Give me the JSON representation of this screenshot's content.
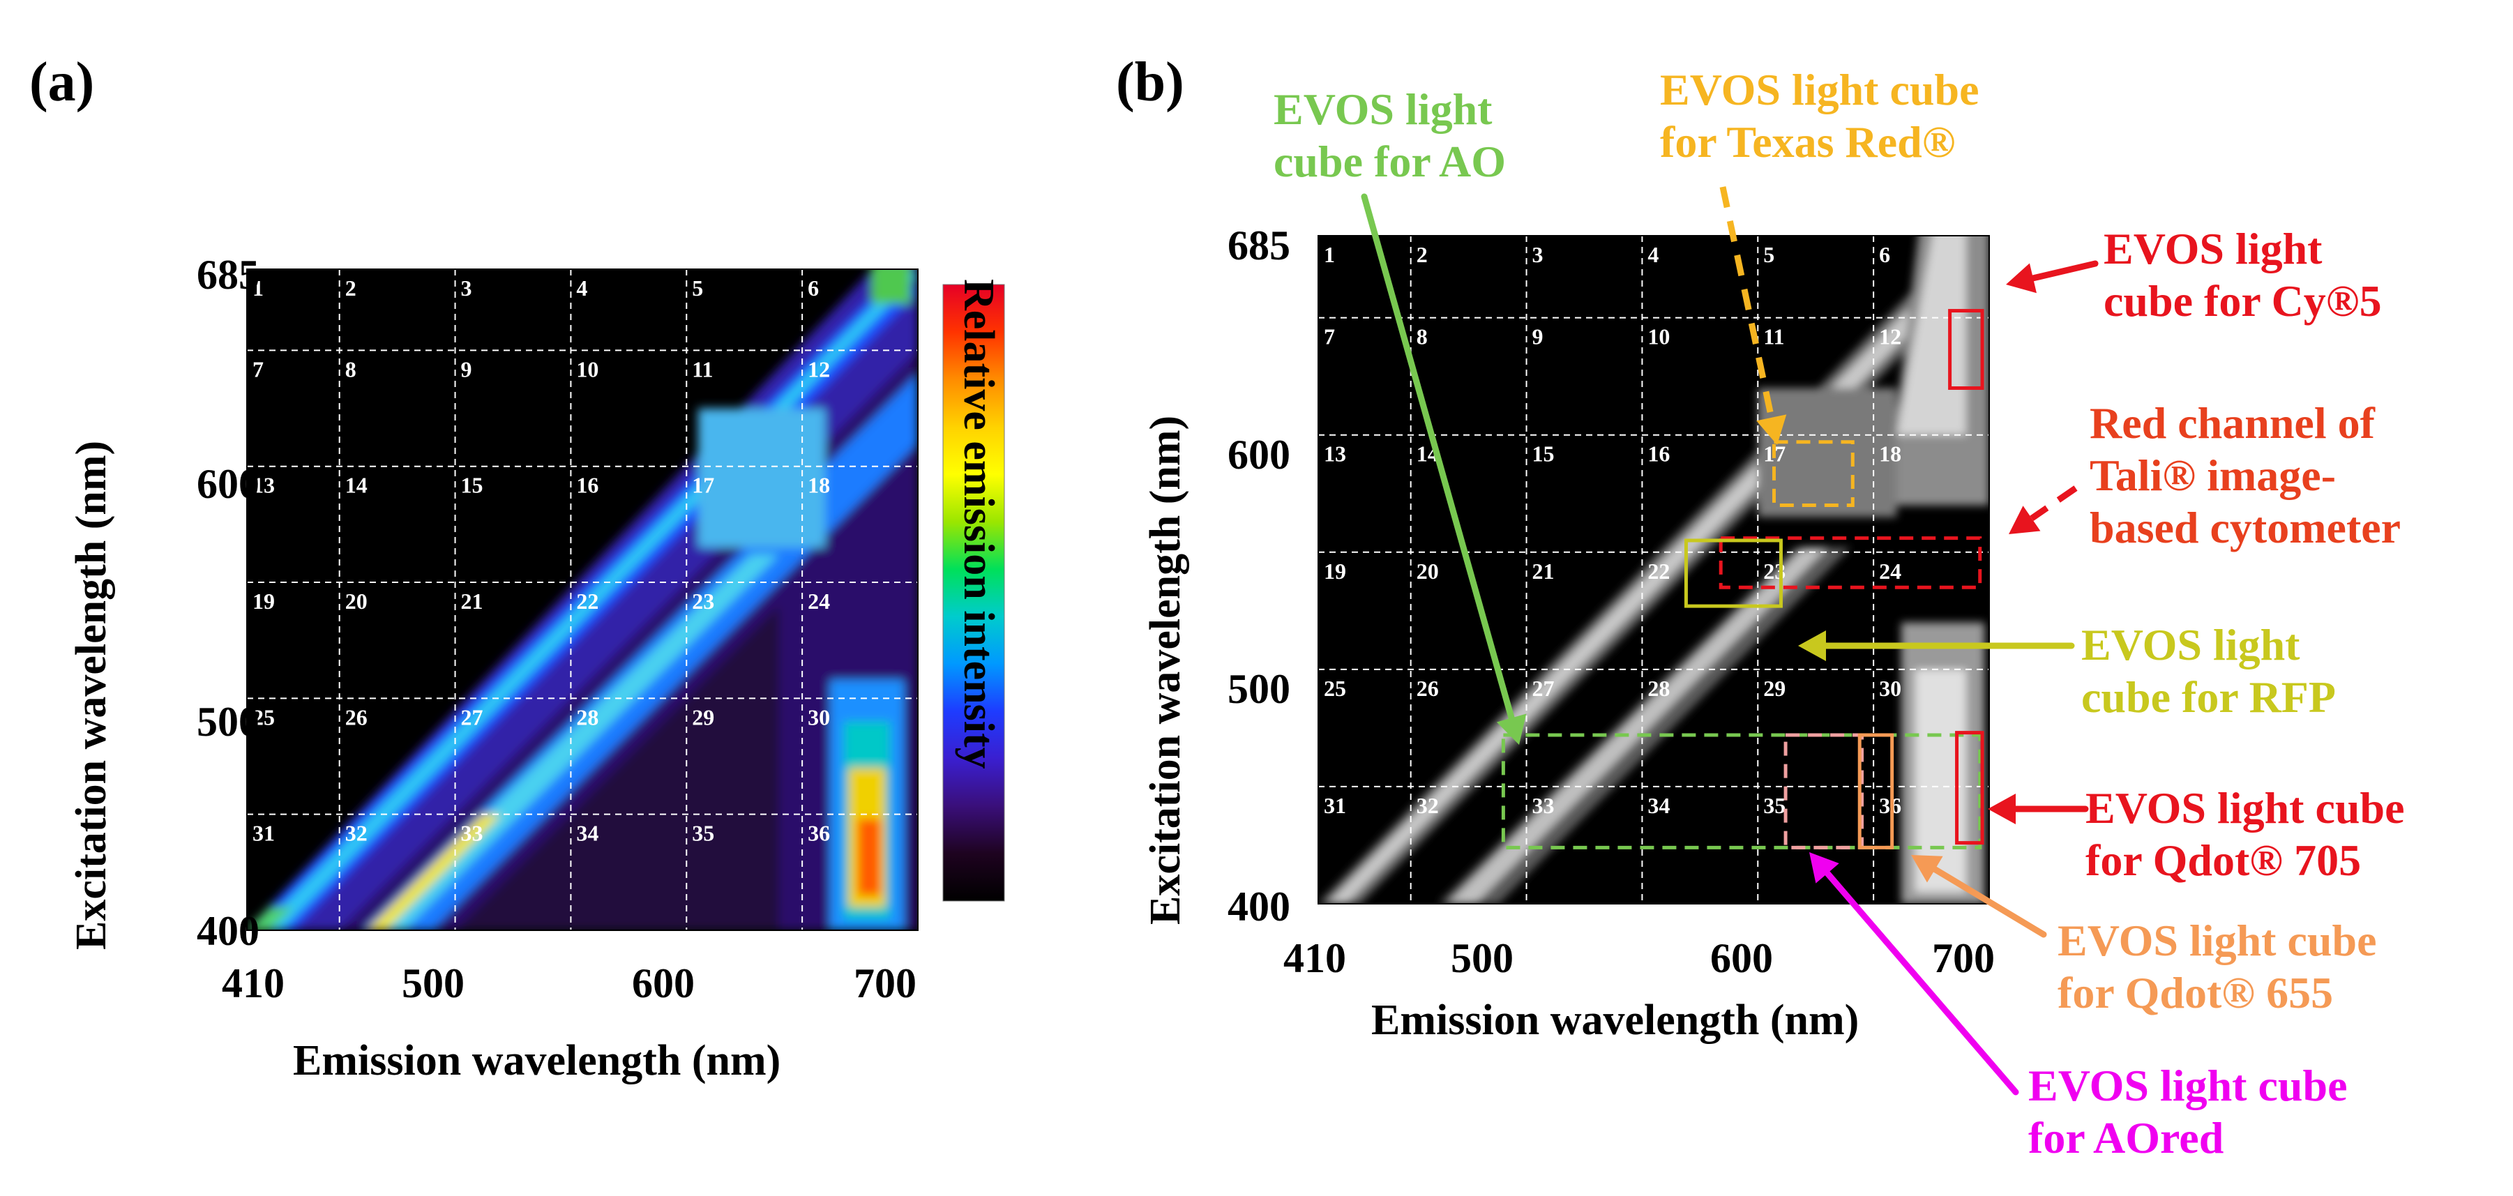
{
  "panel_a": {
    "label": "(a)",
    "colorbar_label": "Relative emission intensity",
    "colorbar_stops": [
      "#e60026",
      "#ff3300",
      "#ff8c00",
      "#ffd200",
      "#ffff00",
      "#9be600",
      "#00e05a",
      "#00cccc",
      "#0099ff",
      "#1e3cff",
      "#3a1fd0",
      "#3a0f7a",
      "#1e0320",
      "#000000"
    ]
  },
  "panel_b": {
    "label": "(b)"
  },
  "chart_data": [
    {
      "type": "heatmap",
      "panel": "a",
      "title": "",
      "xlabel": "Emission wavelength (nm)",
      "ylabel": "Excitation wavelength (nm)",
      "xlim": [
        410,
        700
      ],
      "ylim": [
        400,
        685
      ],
      "xticks": [
        410,
        500,
        600,
        700
      ],
      "yticks": [
        400,
        500,
        600,
        685
      ],
      "grid_x": [
        450,
        500,
        550,
        600,
        650
      ],
      "grid_y": [
        450,
        500,
        550,
        600,
        650
      ],
      "grid": true,
      "colorscale": "jet (black = low, red = high)",
      "region_labels": [
        "1",
        "2",
        "3",
        "4",
        "5",
        "6",
        "7",
        "8",
        "9",
        "10",
        "11",
        "12",
        "13",
        "14",
        "15",
        "16",
        "17",
        "18",
        "19",
        "20",
        "21",
        "22",
        "23",
        "24",
        "25",
        "26",
        "27",
        "28",
        "29",
        "30",
        "31",
        "32",
        "33",
        "34",
        "35",
        "36"
      ],
      "features": [
        {
          "name": "first-order diagonal band",
          "emission_equals_excitation": true,
          "level": "blue to light blue"
        },
        {
          "name": "second-order band",
          "emission_minus_excitation_nm": 50,
          "level": "yellow to blue"
        },
        {
          "name": "broad emission 660-690 nm",
          "excitation_range": [
            400,
            510
          ],
          "level": "yellow to red"
        },
        {
          "name": "broad emission 600-660 nm",
          "excitation_range": [
            560,
            620
          ],
          "level": "light blue"
        }
      ]
    },
    {
      "type": "heatmap",
      "panel": "b",
      "title": "",
      "xlabel": "Emission wavelength (nm)",
      "ylabel": "Excitation wavelength (nm)",
      "xlim": [
        410,
        700
      ],
      "ylim": [
        400,
        685
      ],
      "xticks": [
        410,
        500,
        600,
        700
      ],
      "yticks": [
        400,
        500,
        600,
        685
      ],
      "grid_x": [
        450,
        500,
        550,
        600,
        650
      ],
      "grid_y": [
        450,
        500,
        550,
        600,
        650
      ],
      "grid": true,
      "colorscale": "grayscale",
      "region_labels": [
        "1",
        "2",
        "3",
        "4",
        "5",
        "6",
        "7",
        "8",
        "9",
        "10",
        "11",
        "12",
        "13",
        "14",
        "15",
        "16",
        "17",
        "18",
        "19",
        "20",
        "21",
        "22",
        "23",
        "24",
        "25",
        "26",
        "27",
        "28",
        "29",
        "30",
        "31",
        "32",
        "33",
        "34",
        "35",
        "36"
      ],
      "filter_boxes": [
        {
          "name": "EVOS light cube for Cy®5",
          "em": [
            683,
            697
          ],
          "ex": [
            620,
            653
          ],
          "color": "#e8141e",
          "dash": "solid"
        },
        {
          "name": "EVOS light cube for Texas Red®",
          "em": [
            607,
            641
          ],
          "ex": [
            570,
            597
          ],
          "color": "#f6b521",
          "dash": "dashed"
        },
        {
          "name": "Red channel of Tali® image-based cytometer",
          "em": [
            584,
            696
          ],
          "ex": [
            535,
            556
          ],
          "color": "#e8141e",
          "dash": "dashed"
        },
        {
          "name": "EVOS light cube for RFP",
          "em": [
            569,
            610
          ],
          "ex": [
            527,
            555
          ],
          "color": "#c8c81e",
          "dash": "solid"
        },
        {
          "name": "EVOS light cube for AO",
          "em": [
            490,
            696
          ],
          "ex": [
            424,
            472
          ],
          "color": "#78c850",
          "dash": "dashed"
        },
        {
          "name": "EVOS light cube for AOred",
          "em": [
            612,
            645
          ],
          "ex": [
            424,
            472
          ],
          "color": "#f0a0a0",
          "dash": "dashed"
        },
        {
          "name": "EVOS light cube for Qdot® 655",
          "em": [
            644,
            658
          ],
          "ex": [
            424,
            472
          ],
          "color": "#f59a55",
          "dash": "solid"
        },
        {
          "name": "EVOS light cube for Qdot® 705",
          "em": [
            686,
            697
          ],
          "ex": [
            426,
            473
          ],
          "color": "#e8141e",
          "dash": "solid"
        }
      ],
      "annotations": [
        {
          "id": "ao",
          "text": "EVOS light\ncube for AO",
          "color": "#78c850"
        },
        {
          "id": "tx",
          "text": "EVOS light cube\nfor Texas Red®",
          "color": "#f6b521"
        },
        {
          "id": "cy5",
          "text": "EVOS light\ncube for Cy®5",
          "color": "#e8141e"
        },
        {
          "id": "tali",
          "text": "Red channel of\nTali® image-\nbased cytometer",
          "color": "#e8401e"
        },
        {
          "id": "rfp",
          "text": "EVOS light\ncube for RFP",
          "color": "#c8c81e"
        },
        {
          "id": "q705",
          "text": "EVOS light cube\nfor Qdot® 705",
          "color": "#e8141e"
        },
        {
          "id": "q655",
          "text": "EVOS light cube\nfor Qdot® 655",
          "color": "#f59a55"
        },
        {
          "id": "aored",
          "text": "EVOS light cube\nfor AOred",
          "color": "#f000f0"
        }
      ]
    }
  ]
}
